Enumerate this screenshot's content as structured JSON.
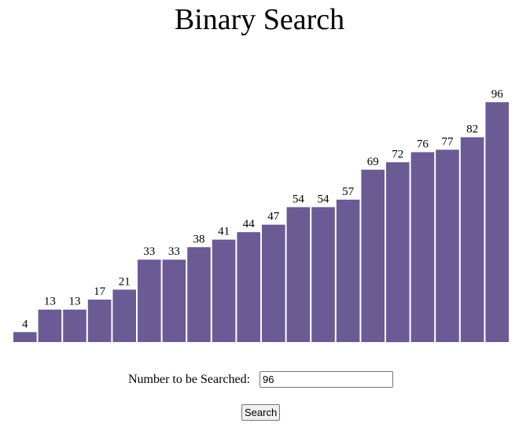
{
  "page": {
    "title": "Binary Search"
  },
  "search": {
    "label": "Number to be Searched:",
    "value": "96",
    "button_label": "Search"
  },
  "colors": {
    "bar_fill": "#6a5b95",
    "background": "#ffffff"
  },
  "chart_data": {
    "type": "bar",
    "categories": [
      "",
      "",
      "",
      "",
      "",
      "",
      "",
      "",
      "",
      "",
      "",
      "",
      "",
      "",
      "",
      "",
      "",
      "",
      "",
      ""
    ],
    "values": [
      4,
      13,
      13,
      17,
      21,
      33,
      33,
      38,
      41,
      44,
      47,
      54,
      54,
      57,
      69,
      72,
      76,
      77,
      82,
      96
    ],
    "data_labels": [
      "4",
      "13",
      "13",
      "17",
      "21",
      "33",
      "33",
      "38",
      "41",
      "44",
      "47",
      "54",
      "54",
      "57",
      "69",
      "72",
      "76",
      "77",
      "82",
      "96"
    ],
    "title": "Binary Search",
    "xlabel": "",
    "ylabel": "",
    "ylim": [
      0,
      96
    ],
    "grid": false,
    "legend": "none"
  }
}
